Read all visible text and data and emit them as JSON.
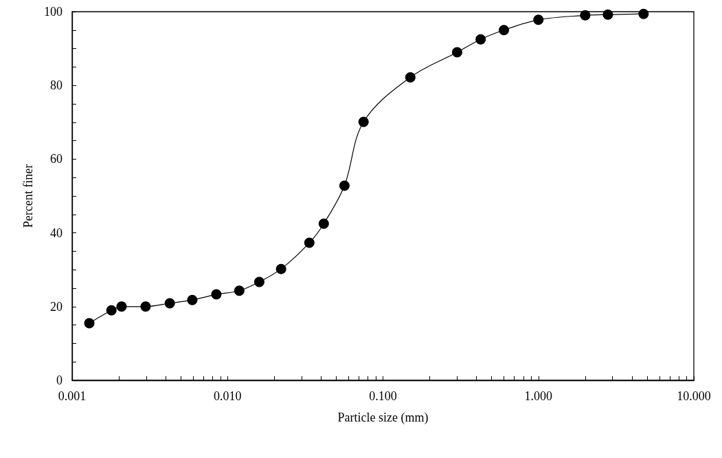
{
  "chart_data": {
    "type": "line",
    "xlabel": "Particle size (mm)",
    "ylabel": "Percent finer",
    "log": "x",
    "marker": "circle",
    "line_style": "solid",
    "grid": false,
    "xlim": [
      0.001,
      10
    ],
    "ylim": [
      0,
      100
    ],
    "xticks": [
      {
        "value": 0.001,
        "label": "0.001"
      },
      {
        "value": 0.002,
        "label": null
      },
      {
        "value": 0.003,
        "label": null
      },
      {
        "value": 0.004,
        "label": null
      },
      {
        "value": 0.005,
        "label": null
      },
      {
        "value": 0.006,
        "label": null
      },
      {
        "value": 0.007,
        "label": null
      },
      {
        "value": 0.008,
        "label": null
      },
      {
        "value": 0.009,
        "label": null
      },
      {
        "value": 0.01,
        "label": "0.010"
      },
      {
        "value": 0.02,
        "label": null
      },
      {
        "value": 0.03,
        "label": null
      },
      {
        "value": 0.04,
        "label": null
      },
      {
        "value": 0.05,
        "label": null
      },
      {
        "value": 0.06,
        "label": null
      },
      {
        "value": 0.07,
        "label": null
      },
      {
        "value": 0.08,
        "label": null
      },
      {
        "value": 0.09,
        "label": null
      },
      {
        "value": 0.1,
        "label": "0.100"
      },
      {
        "value": 0.2,
        "label": null
      },
      {
        "value": 0.3,
        "label": null
      },
      {
        "value": 0.4,
        "label": null
      },
      {
        "value": 0.5,
        "label": null
      },
      {
        "value": 0.6,
        "label": null
      },
      {
        "value": 0.7,
        "label": null
      },
      {
        "value": 0.8,
        "label": null
      },
      {
        "value": 0.9,
        "label": null
      },
      {
        "value": 1,
        "label": "1.000"
      },
      {
        "value": 2,
        "label": null
      },
      {
        "value": 3,
        "label": null
      },
      {
        "value": 4,
        "label": null
      },
      {
        "value": 5,
        "label": null
      },
      {
        "value": 6,
        "label": null
      },
      {
        "value": 7,
        "label": null
      },
      {
        "value": 8,
        "label": null
      },
      {
        "value": 9,
        "label": null
      },
      {
        "value": 10,
        "label": "10.000"
      }
    ],
    "yticks": [
      0,
      {
        "value": 5,
        "label": null
      },
      {
        "value": 10,
        "label": null
      },
      {
        "value": 15,
        "label": null
      },
      20,
      {
        "value": 25,
        "label": null
      },
      {
        "value": 30,
        "label": null
      },
      {
        "value": 35,
        "label": null
      },
      40,
      {
        "value": 45,
        "label": null
      },
      {
        "value": 50,
        "label": null
      },
      {
        "value": 55,
        "label": null
      },
      60,
      {
        "value": 65,
        "label": null
      },
      {
        "value": 70,
        "label": null
      },
      {
        "value": 75,
        "label": null
      },
      80,
      {
        "value": 85,
        "label": null
      },
      {
        "value": 90,
        "label": null
      },
      {
        "value": 95,
        "label": null
      },
      100
    ],
    "x": [
      0.00129,
      0.00179,
      0.00208,
      0.00297,
      0.00425,
      0.00593,
      0.00847,
      0.0119,
      0.016,
      0.0221,
      0.0336,
      0.0416,
      0.0565,
      0.075,
      0.15,
      0.3,
      0.425,
      0.6,
      1.0,
      2.0,
      2.8,
      4.75
    ],
    "series": [
      {
        "color": "#000000",
        "values": [
          15.5,
          19.0,
          20.0,
          20.0,
          20.9,
          21.8,
          23.3,
          24.3,
          26.7,
          30.2,
          37.3,
          42.5,
          52.8,
          70.1,
          82.2,
          89.0,
          92.5,
          95.0,
          97.8,
          99.0,
          99.2,
          99.4
        ]
      }
    ]
  }
}
